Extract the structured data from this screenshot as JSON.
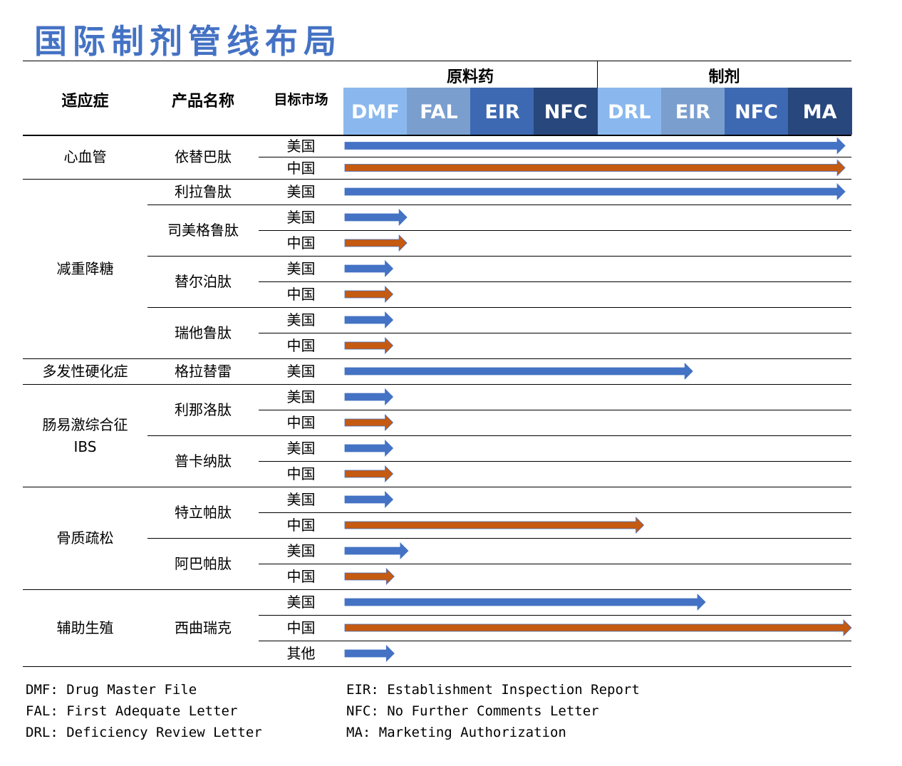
{
  "title": "国际制剂管线布局",
  "header": {
    "indication": "适应症",
    "product": "产品名称",
    "market": "目标市场",
    "groups": [
      {
        "label": "原料药",
        "stages": [
          {
            "label": "DMF",
            "color": "#8ab8ee"
          },
          {
            "label": "FAL",
            "color": "#7a9fce"
          },
          {
            "label": "EIR",
            "color": "#3d68b2"
          },
          {
            "label": "NFC",
            "color": "#28477c"
          }
        ]
      },
      {
        "label": "制剂",
        "stages": [
          {
            "label": "DRL",
            "color": "#8ab8ee"
          },
          {
            "label": "EIR",
            "color": "#7a9fce"
          },
          {
            "label": "NFC",
            "color": "#3d68b2"
          },
          {
            "label": "MA",
            "color": "#28477c"
          }
        ]
      }
    ]
  },
  "arrow_colors": {
    "blue": "#4472c4",
    "orange": "#c55a11"
  },
  "indications": [
    {
      "name": [
        "心血管"
      ],
      "products": [
        {
          "name": "依替巴肽",
          "markets": [
            {
              "market": "美国",
              "color": "blue",
              "progress_stages": 7.9
            },
            {
              "market": "中国",
              "color": "orange",
              "progress_stages": 7.9
            }
          ]
        }
      ]
    },
    {
      "name": [
        "减重降糖"
      ],
      "products": [
        {
          "name": "利拉鲁肽",
          "markets": [
            {
              "market": "美国",
              "color": "blue",
              "progress_stages": 7.9
            }
          ]
        },
        {
          "name": "司美格鲁肽",
          "markets": [
            {
              "market": "美国",
              "color": "blue",
              "progress_stages": 1.0
            },
            {
              "market": "中国",
              "color": "orange",
              "progress_stages": 1.0
            }
          ]
        },
        {
          "name": "替尔泊肽",
          "markets": [
            {
              "market": "美国",
              "color": "blue",
              "progress_stages": 0.78
            },
            {
              "market": "中国",
              "color": "orange",
              "progress_stages": 0.78
            }
          ]
        },
        {
          "name": "瑞他鲁肽",
          "markets": [
            {
              "market": "美国",
              "color": "blue",
              "progress_stages": 0.78
            },
            {
              "market": "中国",
              "color": "orange",
              "progress_stages": 0.78
            }
          ]
        }
      ]
    },
    {
      "name": [
        "多发性硬化症"
      ],
      "products": [
        {
          "name": "格拉替雷",
          "markets": [
            {
              "market": "美国",
              "color": "blue",
              "progress_stages": 5.5
            }
          ]
        }
      ]
    },
    {
      "name": [
        "肠易激综合征",
        "IBS"
      ],
      "products": [
        {
          "name": "利那洛肽",
          "markets": [
            {
              "market": "美国",
              "color": "blue",
              "progress_stages": 0.78
            },
            {
              "market": "中国",
              "color": "orange",
              "progress_stages": 0.78
            }
          ]
        },
        {
          "name": "普卡纳肽",
          "markets": [
            {
              "market": "美国",
              "color": "blue",
              "progress_stages": 0.78
            },
            {
              "market": "中国",
              "color": "orange",
              "progress_stages": 0.78
            }
          ]
        }
      ]
    },
    {
      "name": [
        "骨质疏松"
      ],
      "products": [
        {
          "name": "特立帕肽",
          "markets": [
            {
              "market": "美国",
              "color": "blue",
              "progress_stages": 0.78
            },
            {
              "market": "中国",
              "color": "orange",
              "progress_stages": 4.73
            }
          ]
        },
        {
          "name": "阿巴帕肽",
          "markets": [
            {
              "market": "美国",
              "color": "blue",
              "progress_stages": 1.02
            },
            {
              "market": "中国",
              "color": "orange",
              "progress_stages": 0.8
            }
          ]
        }
      ]
    },
    {
      "name": [
        "辅助生殖"
      ],
      "products": [
        {
          "name": "西曲瑞克",
          "markets": [
            {
              "market": "美国",
              "color": "blue",
              "progress_stages": 5.7
            },
            {
              "market": "中国",
              "color": "orange",
              "progress_stages": 8.0
            },
            {
              "market": "其他",
              "color": "blue",
              "progress_stages": 0.8
            }
          ]
        }
      ]
    }
  ],
  "legend": {
    "left": [
      "DMF: Drug Master File",
      "FAL: First Adequate Letter",
      "DRL: Deficiency Review Letter"
    ],
    "right": [
      "EIR: Establishment Inspection Report",
      "NFC: No Further Comments Letter",
      "MA: Marketing Authorization"
    ]
  }
}
